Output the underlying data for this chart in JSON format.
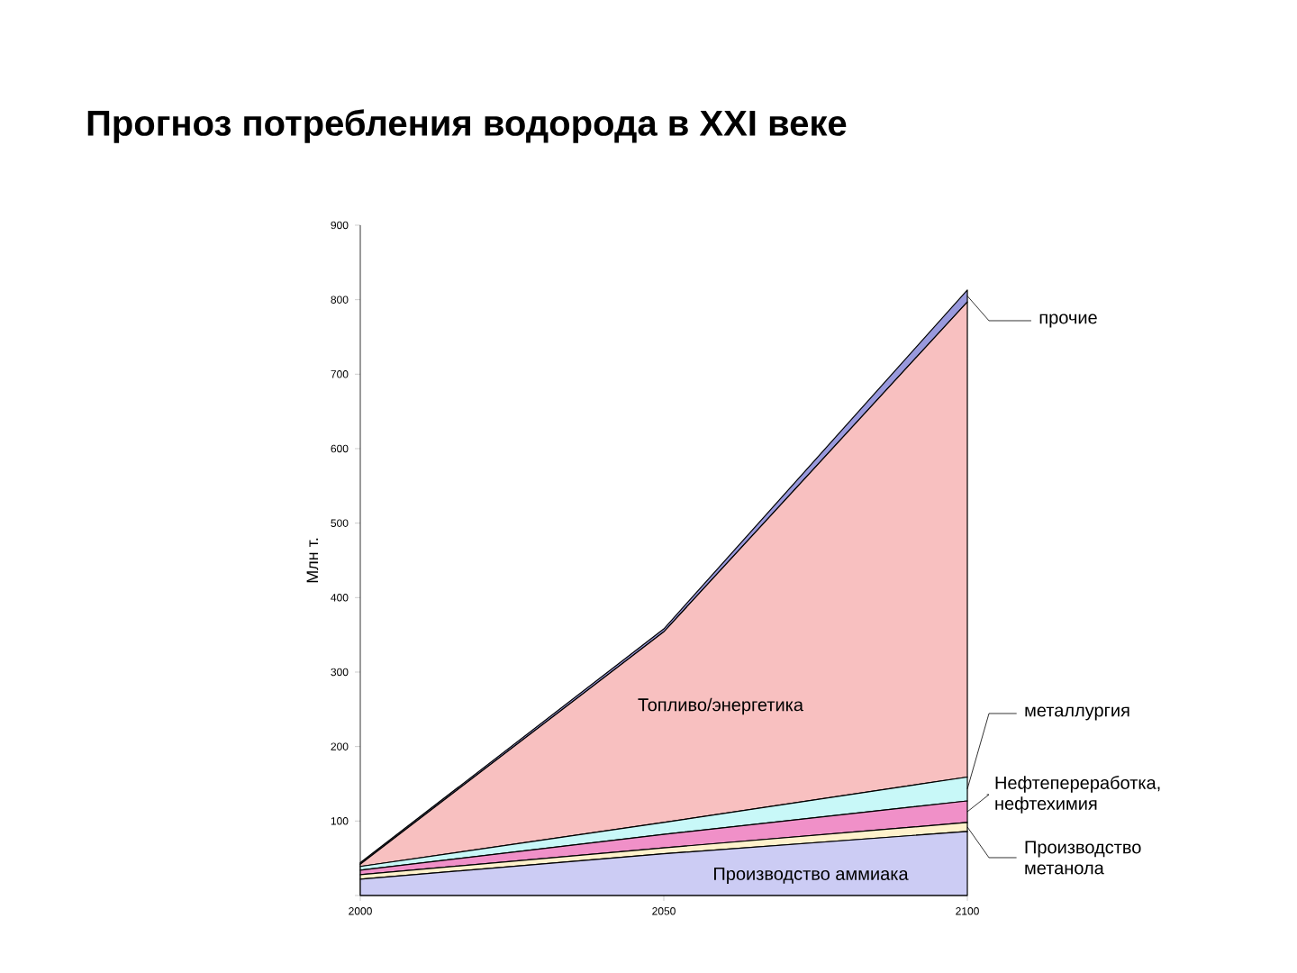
{
  "chart_data": {
    "type": "area",
    "stacked": true,
    "title": "Прогноз потребления водорода в XXI веке",
    "ylabel": "Млн т.",
    "x": [
      2000,
      2050,
      2100
    ],
    "xlim": [
      2000,
      2100
    ],
    "xticks": [
      2000,
      2050,
      2100
    ],
    "ylim": [
      0,
      900
    ],
    "yticks": [
      {
        "value": 0,
        "label": null
      },
      100,
      200,
      300,
      400,
      500,
      600,
      700,
      800,
      900
    ],
    "legend": "right",
    "series": [
      {
        "name": "Производство аммиака",
        "color": "#ccccf4",
        "values": [
          22,
          56,
          86
        ]
      },
      {
        "name": "Производство метанола",
        "color": "#fff2cc",
        "values": [
          6,
          8,
          12
        ]
      },
      {
        "name": "Нефтепереработка, нефтехимия",
        "color": "#f090c8",
        "values": [
          6,
          18,
          29
        ]
      },
      {
        "name": "металлургия",
        "color": "#c8f8f8",
        "values": [
          5,
          16,
          32
        ]
      },
      {
        "name": "Топливо/энергетика",
        "color": "#f8c0c0",
        "values": [
          3,
          256,
          638
        ]
      },
      {
        "name": "прочие",
        "color": "#9999dd",
        "values": [
          2,
          4,
          16
        ]
      }
    ]
  }
}
